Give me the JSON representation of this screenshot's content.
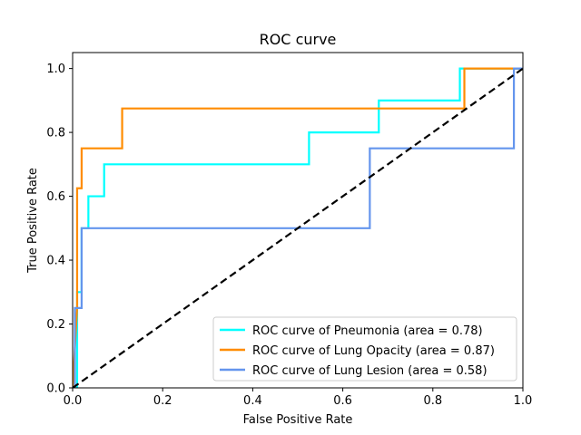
{
  "chart_data": {
    "type": "line",
    "title": "ROC curve",
    "xlabel": "False Positive Rate",
    "ylabel": "True Positive Rate",
    "xlim": [
      0.0,
      1.0
    ],
    "ylim": [
      0.0,
      1.05
    ],
    "xticks": [
      "0.0",
      "0.2",
      "0.4",
      "0.6",
      "0.8",
      "1.0"
    ],
    "yticks": [
      "0.0",
      "0.2",
      "0.4",
      "0.6",
      "0.8",
      "1.0"
    ],
    "grid": false,
    "legend_position": "lower-right",
    "series": [
      {
        "name": "ROC curve of Pneumonia (area = 0.78)",
        "color": "#00ffff",
        "x": [
          0.0,
          0.01,
          0.01,
          0.02,
          0.02,
          0.035,
          0.035,
          0.07,
          0.07,
          0.525,
          0.525,
          0.68,
          0.68,
          0.86,
          0.86,
          0.98,
          0.98,
          1.0
        ],
        "y": [
          0.0,
          0.0,
          0.3,
          0.3,
          0.5,
          0.5,
          0.6,
          0.6,
          0.7,
          0.7,
          0.8,
          0.8,
          0.9,
          0.9,
          1.0,
          1.0,
          1.0,
          1.0
        ]
      },
      {
        "name": "ROC curve of Lung Opacity (area = 0.87)",
        "color": "#ff8c00",
        "x": [
          0.0,
          0.01,
          0.01,
          0.02,
          0.02,
          0.11,
          0.11,
          0.87,
          0.87,
          1.0
        ],
        "y": [
          0.0,
          0.25,
          0.625,
          0.625,
          0.75,
          0.75,
          0.875,
          0.875,
          1.0,
          1.0
        ]
      },
      {
        "name": "ROC curve of Lung Lesion (area = 0.58)",
        "color": "#6495ed",
        "x": [
          0.0,
          0.005,
          0.005,
          0.02,
          0.02,
          0.66,
          0.66,
          0.98,
          0.98,
          1.0
        ],
        "y": [
          0.0,
          0.0,
          0.25,
          0.25,
          0.5,
          0.5,
          0.75,
          0.75,
          1.0,
          1.0
        ]
      }
    ],
    "reference_line": {
      "color": "#000000",
      "x": [
        0.0,
        1.0
      ],
      "y": [
        0.0,
        1.0
      ]
    }
  }
}
